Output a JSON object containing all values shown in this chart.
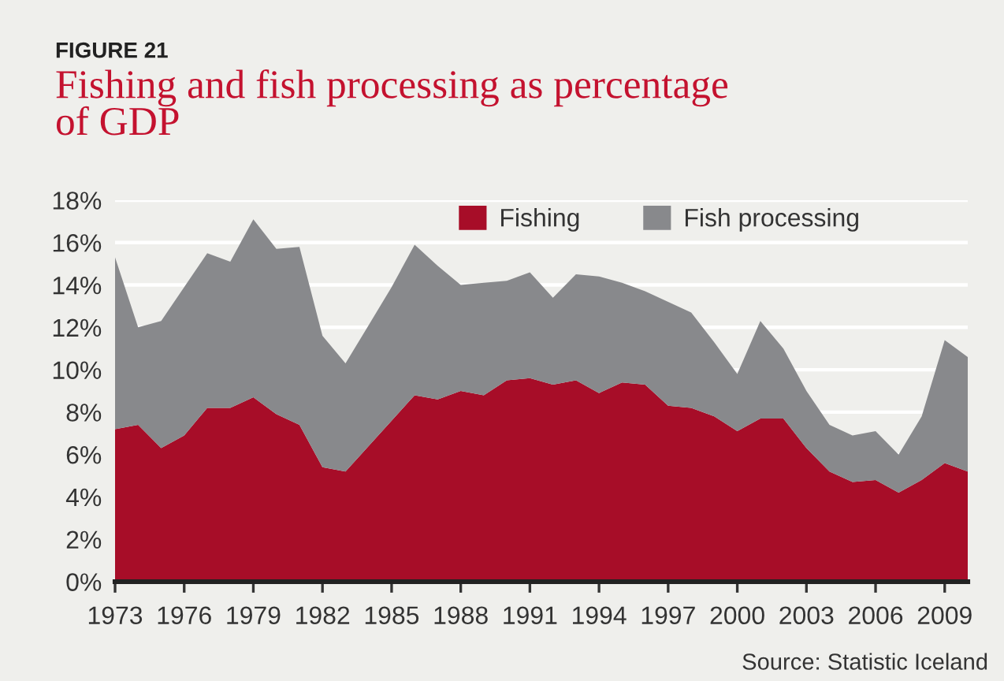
{
  "chart_data": {
    "type": "area",
    "title": "Fishing and fish processing as percentage of GDP",
    "annotations": [
      "FIGURE 21",
      "Source: Statistic Iceland"
    ],
    "x": [
      1973,
      1974,
      1975,
      1976,
      1977,
      1978,
      1979,
      1980,
      1981,
      1982,
      1983,
      1984,
      1985,
      1986,
      1987,
      1988,
      1989,
      1990,
      1991,
      1992,
      1993,
      1994,
      1995,
      1996,
      1997,
      1998,
      1999,
      2000,
      2001,
      2002,
      2003,
      2004,
      2005,
      2006,
      2007,
      2008,
      2009,
      2010
    ],
    "series": [
      {
        "name": "Fishing",
        "color": "#a70d28",
        "values": [
          7.2,
          7.4,
          6.3,
          6.9,
          8.2,
          8.2,
          8.7,
          7.9,
          7.4,
          5.4,
          5.2,
          6.4,
          7.6,
          8.8,
          8.6,
          9.0,
          8.8,
          9.5,
          9.6,
          9.3,
          9.5,
          8.9,
          9.4,
          9.3,
          8.3,
          8.2,
          7.8,
          7.1,
          7.7,
          7.7,
          6.3,
          5.2,
          4.7,
          4.8,
          4.2,
          4.8,
          5.6,
          5.2
        ]
      },
      {
        "name": "Fish processing",
        "color": "#88898c",
        "values": [
          8.1,
          4.6,
          6.0,
          7.0,
          7.3,
          6.9,
          8.4,
          7.8,
          8.4,
          6.2,
          5.1,
          5.7,
          6.3,
          7.1,
          6.3,
          5.0,
          5.3,
          4.7,
          5.0,
          4.1,
          5.0,
          5.5,
          4.7,
          4.4,
          4.9,
          4.5,
          3.5,
          2.7,
          4.6,
          3.3,
          2.7,
          2.2,
          2.2,
          2.3,
          1.8,
          3.0,
          5.8,
          5.4
        ]
      }
    ],
    "stacked": true,
    "xlim": [
      1973,
      2010
    ],
    "xticks": [
      1973,
      1976,
      1979,
      1982,
      1985,
      1988,
      1991,
      1994,
      1997,
      2000,
      2003,
      2006,
      2009
    ],
    "ylim": [
      0,
      18
    ],
    "yticks": [
      {
        "value": 0,
        "label": "0%"
      },
      {
        "value": 2,
        "label": "2%"
      },
      {
        "value": 4,
        "label": "4%"
      },
      {
        "value": 6,
        "label": "6%"
      },
      {
        "value": 8,
        "label": "8%"
      },
      {
        "value": 10,
        "label": "10%"
      },
      {
        "value": 12,
        "label": "12%"
      },
      {
        "value": 14,
        "label": "14%"
      },
      {
        "value": 16,
        "label": "16%"
      },
      {
        "value": 18,
        "label": "18%"
      }
    ],
    "grid": "y",
    "legend": "top right"
  }
}
